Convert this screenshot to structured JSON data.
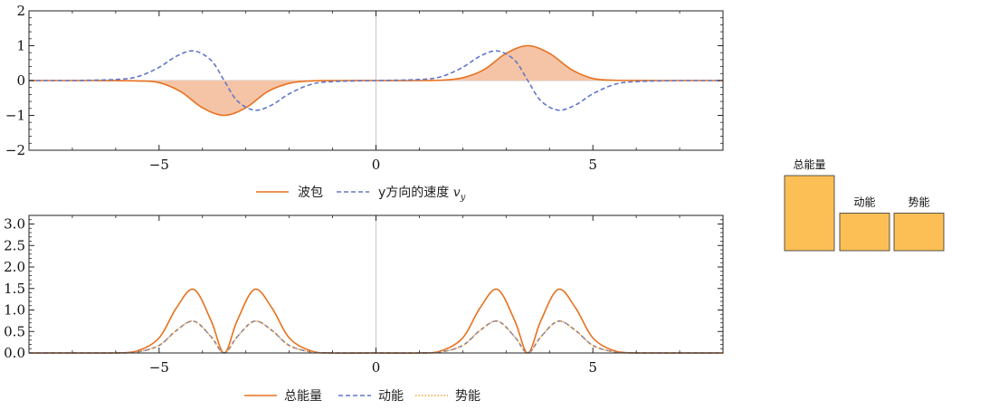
{
  "chart_data": [
    {
      "type": "line",
      "xlim": [
        -8,
        8
      ],
      "ylim": [
        -2,
        2
      ],
      "x_ticks": [
        -5,
        0,
        5
      ],
      "y_ticks": [
        -2,
        -1,
        0,
        1,
        2
      ],
      "x_tick_labels": [
        "−5",
        "0",
        "5"
      ],
      "y_tick_labels": [
        "−2",
        "−1",
        "0",
        "1",
        "2"
      ],
      "series": [
        {
          "name": "波包",
          "style": "solid",
          "color": "#e8711f",
          "fill": "#f5c4a6",
          "x": [
            -6.5,
            -5.5,
            -5,
            -4.5,
            -4.0,
            -3.5,
            -3.0,
            -2.5,
            -2.0,
            -1.5,
            -1.0,
            0,
            1.0,
            1.5,
            2.0,
            2.5,
            3.0,
            3.5,
            4.0,
            4.5,
            5.0,
            5.5,
            6.5
          ],
          "y": [
            0,
            -0.01,
            -0.06,
            -0.32,
            -0.78,
            -1.0,
            -0.78,
            -0.32,
            -0.08,
            -0.01,
            0,
            0,
            0,
            0.01,
            0.08,
            0.32,
            0.78,
            1.0,
            0.78,
            0.32,
            0.06,
            0.01,
            0
          ]
        },
        {
          "name": "y方向的速度 v_y",
          "style": "dashed",
          "color": "#6277c9",
          "x": [
            -7.0,
            -6.0,
            -5.5,
            -5.0,
            -4.6,
            -4.2,
            -3.8,
            -3.5,
            -3.2,
            -2.8,
            -2.4,
            -2.0,
            -1.5,
            -1.0,
            0,
            1.0,
            1.5,
            2.0,
            2.4,
            2.8,
            3.2,
            3.5,
            3.8,
            4.2,
            4.6,
            5.0,
            5.5,
            6.0,
            7.0
          ],
          "y": [
            0,
            0.03,
            0.11,
            0.38,
            0.7,
            0.85,
            0.58,
            0,
            -0.58,
            -0.85,
            -0.7,
            -0.38,
            -0.11,
            -0.03,
            0,
            0.03,
            0.11,
            0.38,
            0.7,
            0.85,
            0.58,
            0,
            -0.58,
            -0.85,
            -0.7,
            -0.38,
            -0.11,
            -0.03,
            0
          ]
        }
      ]
    },
    {
      "type": "line",
      "xlim": [
        -8,
        8
      ],
      "ylim": [
        0,
        3.2
      ],
      "x_ticks": [
        -5,
        0,
        5
      ],
      "y_ticks": [
        0,
        0.5,
        1.0,
        1.5,
        2.0,
        2.5,
        3.0
      ],
      "x_tick_labels": [
        "−5",
        "0",
        "5"
      ],
      "y_tick_labels": [
        "0.0",
        "0.5",
        "1.0",
        "1.5",
        "2.0",
        "2.5",
        "3.0"
      ],
      "series": [
        {
          "name": "总能量",
          "style": "solid",
          "color": "#e8711f",
          "x": [
            -6.0,
            -5.5,
            -5.0,
            -4.6,
            -4.2,
            -3.8,
            -3.5,
            -3.2,
            -2.8,
            -2.4,
            -2.0,
            -1.5,
            -1.0,
            0,
            1.0,
            1.5,
            2.0,
            2.4,
            2.8,
            3.2,
            3.5,
            3.8,
            4.2,
            4.6,
            5.0,
            5.5,
            6.0
          ],
          "y": [
            0.0,
            0.05,
            0.35,
            1.05,
            1.48,
            0.75,
            0.0,
            0.75,
            1.48,
            1.05,
            0.35,
            0.05,
            0.0,
            0.0,
            0.0,
            0.05,
            0.35,
            1.05,
            1.48,
            0.75,
            0.0,
            0.75,
            1.48,
            1.05,
            0.35,
            0.05,
            0.0
          ]
        },
        {
          "name": "动能",
          "style": "dashed",
          "color": "#6277c9",
          "x": [
            -6.0,
            -5.5,
            -5.0,
            -4.6,
            -4.2,
            -3.8,
            -3.5,
            -3.2,
            -2.8,
            -2.4,
            -2.0,
            -1.5,
            -1.0,
            0,
            1.0,
            1.5,
            2.0,
            2.4,
            2.8,
            3.2,
            3.5,
            3.8,
            4.2,
            4.6,
            5.0,
            5.5,
            6.0
          ],
          "y": [
            0.0,
            0.025,
            0.175,
            0.525,
            0.74,
            0.375,
            0.0,
            0.375,
            0.74,
            0.525,
            0.175,
            0.025,
            0.0,
            0.0,
            0.0,
            0.025,
            0.175,
            0.525,
            0.74,
            0.375,
            0.0,
            0.375,
            0.74,
            0.525,
            0.175,
            0.025,
            0.0
          ]
        },
        {
          "name": "势能",
          "style": "dotted",
          "color": "#f0a030",
          "x": [
            -6.0,
            -5.5,
            -5.0,
            -4.6,
            -4.2,
            -3.8,
            -3.5,
            -3.2,
            -2.8,
            -2.4,
            -2.0,
            -1.5,
            -1.0,
            0,
            1.0,
            1.5,
            2.0,
            2.4,
            2.8,
            3.2,
            3.5,
            3.8,
            4.2,
            4.6,
            5.0,
            5.5,
            6.0
          ],
          "y": [
            0.0,
            0.025,
            0.175,
            0.525,
            0.74,
            0.375,
            0.0,
            0.375,
            0.74,
            0.525,
            0.175,
            0.025,
            0.0,
            0.0,
            0.0,
            0.025,
            0.175,
            0.525,
            0.74,
            0.375,
            0.0,
            0.375,
            0.74,
            0.525,
            0.175,
            0.025,
            0.0
          ]
        }
      ]
    },
    {
      "type": "bar",
      "categories": [
        "总能量",
        "动能",
        "势能"
      ],
      "values": [
        2.0,
        1.0,
        1.0
      ],
      "color": "#fbbf55"
    }
  ]
}
